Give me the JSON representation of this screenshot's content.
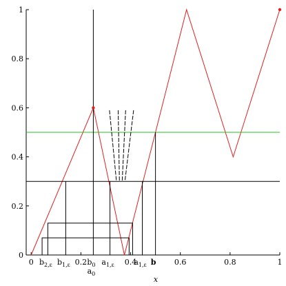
{
  "chart_data": {
    "type": "line",
    "xlabel": "x",
    "xlim": [
      -0.02,
      1.0
    ],
    "ylim": [
      0,
      1
    ],
    "xticks": [
      0,
      0.2,
      0.4,
      0.6,
      0.8,
      1
    ],
    "yticks": [
      0,
      0.2,
      0.4,
      0.6,
      0.8,
      1
    ],
    "series": [
      {
        "color": "#e02020",
        "x": [
          0,
          0.25,
          0.375,
          0.625,
          0.8125,
          1
        ],
        "values": [
          0,
          0.6,
          0,
          1,
          0.4,
          1
        ]
      },
      {
        "color": "#20c020",
        "x": [
          -0.02,
          1
        ],
        "values": [
          0.5,
          0.5
        ]
      },
      {
        "color": "#000000",
        "x": [
          -0.02,
          1
        ],
        "values": [
          0.3,
          0.3
        ]
      },
      {
        "color": "#000000",
        "x": [
          0.25,
          0.25
        ],
        "values": [
          0,
          1
        ]
      },
      {
        "color": "#000000",
        "x": [
          0.5,
          0.5
        ],
        "values": [
          0,
          0.5
        ]
      },
      {
        "color": "#000000",
        "x": [
          0.139,
          0.139
        ],
        "values": [
          0,
          0.3
        ]
      },
      {
        "color": "#000000",
        "x": [
          0.317,
          0.317
        ],
        "values": [
          0,
          0.3
        ]
      },
      {
        "color": "#000000",
        "x": [
          0.447,
          0.447
        ],
        "values": [
          0,
          0.3
        ]
      },
      {
        "color": "#000000",
        "x": [
          0.044,
          0.044,
          0.394,
          0.394
        ],
        "values": [
          0,
          0.07,
          0.07,
          0
        ]
      },
      {
        "color": "#000000",
        "x": [
          0.067,
          0.067,
          0.408,
          0.408
        ],
        "values": [
          0,
          0.13,
          0.13,
          0
        ]
      },
      {
        "color": "#000000",
        "dash": true,
        "x": [
          0.315,
          0.343
        ],
        "values": [
          0.59,
          0.3
        ]
      },
      {
        "color": "#000000",
        "dash": true,
        "x": [
          0.35,
          0.355
        ],
        "values": [
          0.59,
          0.3
        ]
      },
      {
        "color": "#000000",
        "dash": true,
        "x": [
          0.38,
          0.366
        ],
        "values": [
          0.59,
          0.3
        ]
      },
      {
        "color": "#000000",
        "dash": true,
        "x": [
          0.412,
          0.377
        ],
        "values": [
          0.59,
          0.3
        ]
      }
    ],
    "points": {
      "color": "#e02020",
      "x": [
        0.25,
        1
      ],
      "values": [
        0.6,
        1
      ]
    },
    "annotations": [
      {
        "text": "b",
        "sub": "2,ε",
        "x": 0.067
      },
      {
        "text": "b",
        "sub": "1,ε",
        "x": 0.139
      },
      {
        "text": "b",
        "sub": "0",
        "x": 0.25
      },
      {
        "text": "a",
        "sub": "1,ε",
        "x": 0.317
      },
      {
        "text": "a",
        "sub": "1,ε",
        "x": 0.447
      },
      {
        "text": "b",
        "sub": "",
        "x": 0.5,
        "bold": true
      }
    ],
    "annotations_below": [
      {
        "text": "a",
        "sub": "0",
        "x": 0.25
      }
    ]
  }
}
